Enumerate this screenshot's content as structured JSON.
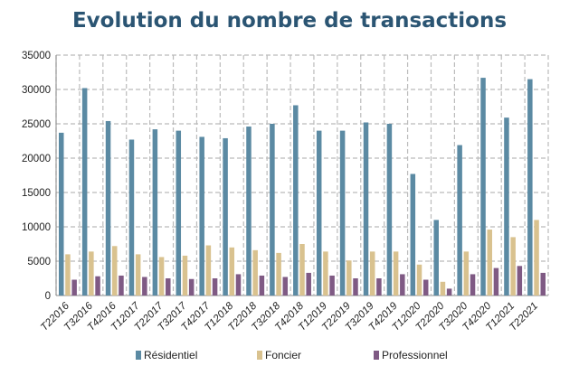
{
  "chart_data": {
    "type": "bar",
    "title": "Evolution du nombre de transactions",
    "xlabel": "",
    "ylabel": "",
    "ylim": [
      0,
      35000
    ],
    "yticks": [
      0,
      5000,
      10000,
      15000,
      20000,
      25000,
      30000,
      35000
    ],
    "grid": true,
    "legend": "bottom",
    "categories": [
      "T22016",
      "T32016",
      "T42016",
      "T12017",
      "T22017",
      "T32017",
      "T42017",
      "T12018",
      "T22018",
      "T32018",
      "T42018",
      "T12019",
      "T22019",
      "T32019",
      "T42019",
      "T12020",
      "T22020",
      "T32020",
      "T42020",
      "T12021",
      "T22021"
    ],
    "series": [
      {
        "name": "Résidentiel",
        "color": "#5b8aa3",
        "values": [
          23700,
          30200,
          25400,
          22700,
          24200,
          24000,
          23100,
          22900,
          24600,
          25000,
          27700,
          24000,
          24000,
          25200,
          25000,
          17700,
          11000,
          21900,
          31700,
          25900,
          31500
        ]
      },
      {
        "name": "Foncier",
        "color": "#d9c28f",
        "values": [
          6000,
          6400,
          7200,
          6000,
          5600,
          5800,
          7300,
          7000,
          6600,
          6200,
          7500,
          6400,
          5100,
          6400,
          6400,
          4500,
          2000,
          6400,
          9600,
          8500,
          11000
        ]
      },
      {
        "name": "Professionnel",
        "color": "#7f5a84",
        "values": [
          2300,
          2800,
          2900,
          2700,
          2500,
          2400,
          2500,
          3100,
          2900,
          2700,
          3300,
          2900,
          2500,
          2500,
          3100,
          2300,
          1000,
          3100,
          4000,
          4300,
          3300
        ]
      }
    ]
  }
}
